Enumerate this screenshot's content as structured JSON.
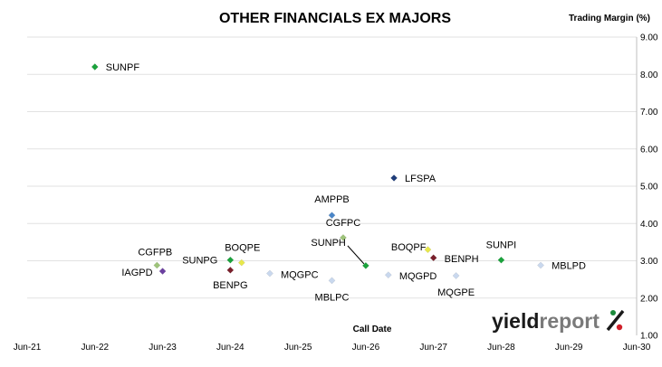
{
  "chart_data": {
    "type": "scatter",
    "title": "OTHER FINANCIALS EX MAJORS",
    "ylabel": "Trading Margin (%)",
    "xlabel": "Call Date",
    "x_axis": {
      "type": "date",
      "range": [
        "2021-06",
        "2030-06"
      ],
      "tick_labels": [
        "Jun-21",
        "Jun-22",
        "Jun-23",
        "Jun-24",
        "Jun-25",
        "Jun-26",
        "Jun-27",
        "Jun-28",
        "Jun-29",
        "Jun-30"
      ]
    },
    "y_axis": {
      "position": "right",
      "range": [
        1.0,
        9.0
      ],
      "tick_labels": [
        "1.00",
        "2.00",
        "3.00",
        "4.00",
        "5.00",
        "6.00",
        "7.00",
        "8.00",
        "9.00"
      ]
    },
    "grid": "horizontal",
    "legend": "none",
    "points": [
      {
        "label": "SUNPF",
        "x": "2022-06",
        "y": 8.2,
        "color": "#1aa33c"
      },
      {
        "label": "CGFPB",
        "x": "2023-05",
        "y": 2.88,
        "color": "#9ec47a"
      },
      {
        "label": "IAGPD",
        "x": "2023-06",
        "y": 2.72,
        "color": "#6b3fa0"
      },
      {
        "label": "SUNPG",
        "x": "2024-06",
        "y": 3.02,
        "color": "#1aa33c"
      },
      {
        "label": "BOQPE",
        "x": "2024-08",
        "y": 2.95,
        "color": "#e8e84a"
      },
      {
        "label": "BENPG",
        "x": "2024-06",
        "y": 2.75,
        "color": "#7a1f2b"
      },
      {
        "label": "MQGPC",
        "x": "2025-01",
        "y": 2.66,
        "color": "#c9d8ee"
      },
      {
        "label": "MBLPC",
        "x": "2025-12",
        "y": 2.47,
        "color": "#c9d8ee"
      },
      {
        "label": "AMPPB",
        "x": "2025-12",
        "y": 4.22,
        "color": "#4a86c8"
      },
      {
        "label": "CGFPC",
        "x": "2026-02",
        "y": 3.62,
        "color": "#9ec47a"
      },
      {
        "label": "SUNPH",
        "x": "2026-06",
        "y": 2.87,
        "color": "#1aa33c"
      },
      {
        "label": "MQGPD",
        "x": "2026-10",
        "y": 2.62,
        "color": "#c9d8ee"
      },
      {
        "label": "LFSPA",
        "x": "2026-11",
        "y": 5.22,
        "color": "#1f3d7a"
      },
      {
        "label": "BOQPF",
        "x": "2027-05",
        "y": 3.3,
        "color": "#e8e84a"
      },
      {
        "label": "BENPH",
        "x": "2027-06",
        "y": 3.08,
        "color": "#7a1f2b"
      },
      {
        "label": "MQGPE",
        "x": "2027-10",
        "y": 2.6,
        "color": "#c9d8ee"
      },
      {
        "label": "SUNPI",
        "x": "2028-06",
        "y": 3.02,
        "color": "#1aa33c"
      },
      {
        "label": "MBLPD",
        "x": "2029-01",
        "y": 2.88,
        "color": "#c9d8ee"
      }
    ]
  },
  "logo": {
    "text_a": "yield",
    "text_b": "report",
    "symbol": "%",
    "colors": {
      "dark": "#1a1a1a",
      "grey": "#7a7a7a",
      "green": "#1a8a3a",
      "red": "#d0202a"
    }
  }
}
